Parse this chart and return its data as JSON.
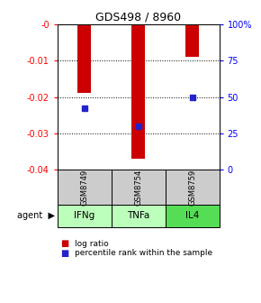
{
  "title": "GDS498 / 8960",
  "categories": [
    "IFNg",
    "TNFa",
    "IL4"
  ],
  "gsm_labels": [
    "GSM8749",
    "GSM8754",
    "GSM8759"
  ],
  "log_ratios": [
    -0.019,
    -0.037,
    -0.009
  ],
  "percentile_ranks": [
    0.42,
    0.3,
    0.5
  ],
  "bar_color": "#cc0000",
  "dot_color": "#2222cc",
  "ylim_left": [
    -0.04,
    0.0
  ],
  "yticks_left": [
    0.0,
    -0.01,
    -0.02,
    -0.03,
    -0.04
  ],
  "ytick_labels_left": [
    "-0",
    "-0.01",
    "-0.02",
    "-0.03",
    "-0.04"
  ],
  "yticks_right": [
    0.0,
    0.25,
    0.5,
    0.75,
    1.0
  ],
  "ytick_labels_right": [
    "0",
    "25",
    "50",
    "75",
    "100%"
  ],
  "agent_colors": [
    "#bbffbb",
    "#bbffbb",
    "#55dd55"
  ],
  "gsm_color": "#cccccc",
  "bar_width": 0.25,
  "background_color": "#ffffff"
}
